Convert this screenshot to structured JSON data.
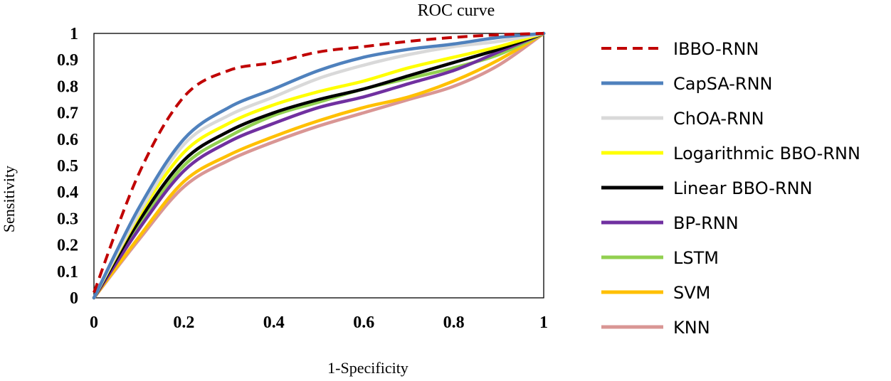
{
  "chart_data": {
    "type": "line",
    "title": "ROC curve",
    "xlabel": "1-Specificity",
    "ylabel": "Sensitivity",
    "xlim": [
      0,
      1
    ],
    "ylim": [
      0,
      1
    ],
    "x_ticks": [
      "0",
      "0.2",
      "0.4",
      "0.6",
      "0.8",
      "1"
    ],
    "y_ticks": [
      "0",
      "0.1",
      "0.2",
      "0.3",
      "0.4",
      "0.5",
      "0.6",
      "0.7",
      "0.8",
      "0.9",
      "1"
    ],
    "legend_position": "right",
    "x": [
      0,
      0.1,
      0.2,
      0.3,
      0.4,
      0.5,
      0.6,
      0.7,
      0.8,
      0.9,
      1
    ],
    "series": [
      {
        "name": "IBBO-RNN",
        "color": "#c00000",
        "dashed": true,
        "values": [
          0.02,
          0.47,
          0.76,
          0.86,
          0.89,
          0.93,
          0.95,
          0.97,
          0.985,
          0.995,
          1.0
        ]
      },
      {
        "name": "CapSA-RNN",
        "color": "#4f81bd",
        "dashed": false,
        "values": [
          0.0,
          0.34,
          0.6,
          0.72,
          0.79,
          0.86,
          0.91,
          0.94,
          0.96,
          0.985,
          1.0
        ]
      },
      {
        "name": "ChOA-RNN",
        "color": "#d9d9d9",
        "dashed": false,
        "values": [
          0.0,
          0.32,
          0.58,
          0.69,
          0.76,
          0.83,
          0.88,
          0.92,
          0.95,
          0.97,
          1.0
        ]
      },
      {
        "name": "Logarithmic BBO-RNN",
        "color": "#ffff00",
        "dashed": false,
        "values": [
          0.0,
          0.31,
          0.55,
          0.66,
          0.73,
          0.78,
          0.82,
          0.87,
          0.91,
          0.95,
          1.0
        ]
      },
      {
        "name": "Linear BBO-RNN",
        "color": "#000000",
        "dashed": false,
        "values": [
          0.0,
          0.29,
          0.52,
          0.63,
          0.7,
          0.75,
          0.79,
          0.84,
          0.89,
          0.94,
          1.0
        ]
      },
      {
        "name": "BP-RNN",
        "color": "#7030a0",
        "dashed": false,
        "values": [
          0.0,
          0.26,
          0.48,
          0.59,
          0.66,
          0.72,
          0.76,
          0.81,
          0.86,
          0.93,
          1.0
        ]
      },
      {
        "name": "LSTM",
        "color": "#92d050",
        "dashed": false,
        "values": [
          0.0,
          0.27,
          0.5,
          0.61,
          0.69,
          0.74,
          0.79,
          0.83,
          0.87,
          0.92,
          1.0
        ]
      },
      {
        "name": "SVM",
        "color": "#ffc000",
        "dashed": false,
        "values": [
          0.0,
          0.23,
          0.44,
          0.54,
          0.61,
          0.67,
          0.72,
          0.76,
          0.82,
          0.9,
          1.0
        ]
      },
      {
        "name": "KNN",
        "color": "#d99694",
        "dashed": false,
        "values": [
          0.0,
          0.22,
          0.42,
          0.52,
          0.59,
          0.65,
          0.7,
          0.75,
          0.8,
          0.88,
          1.0
        ]
      }
    ]
  }
}
